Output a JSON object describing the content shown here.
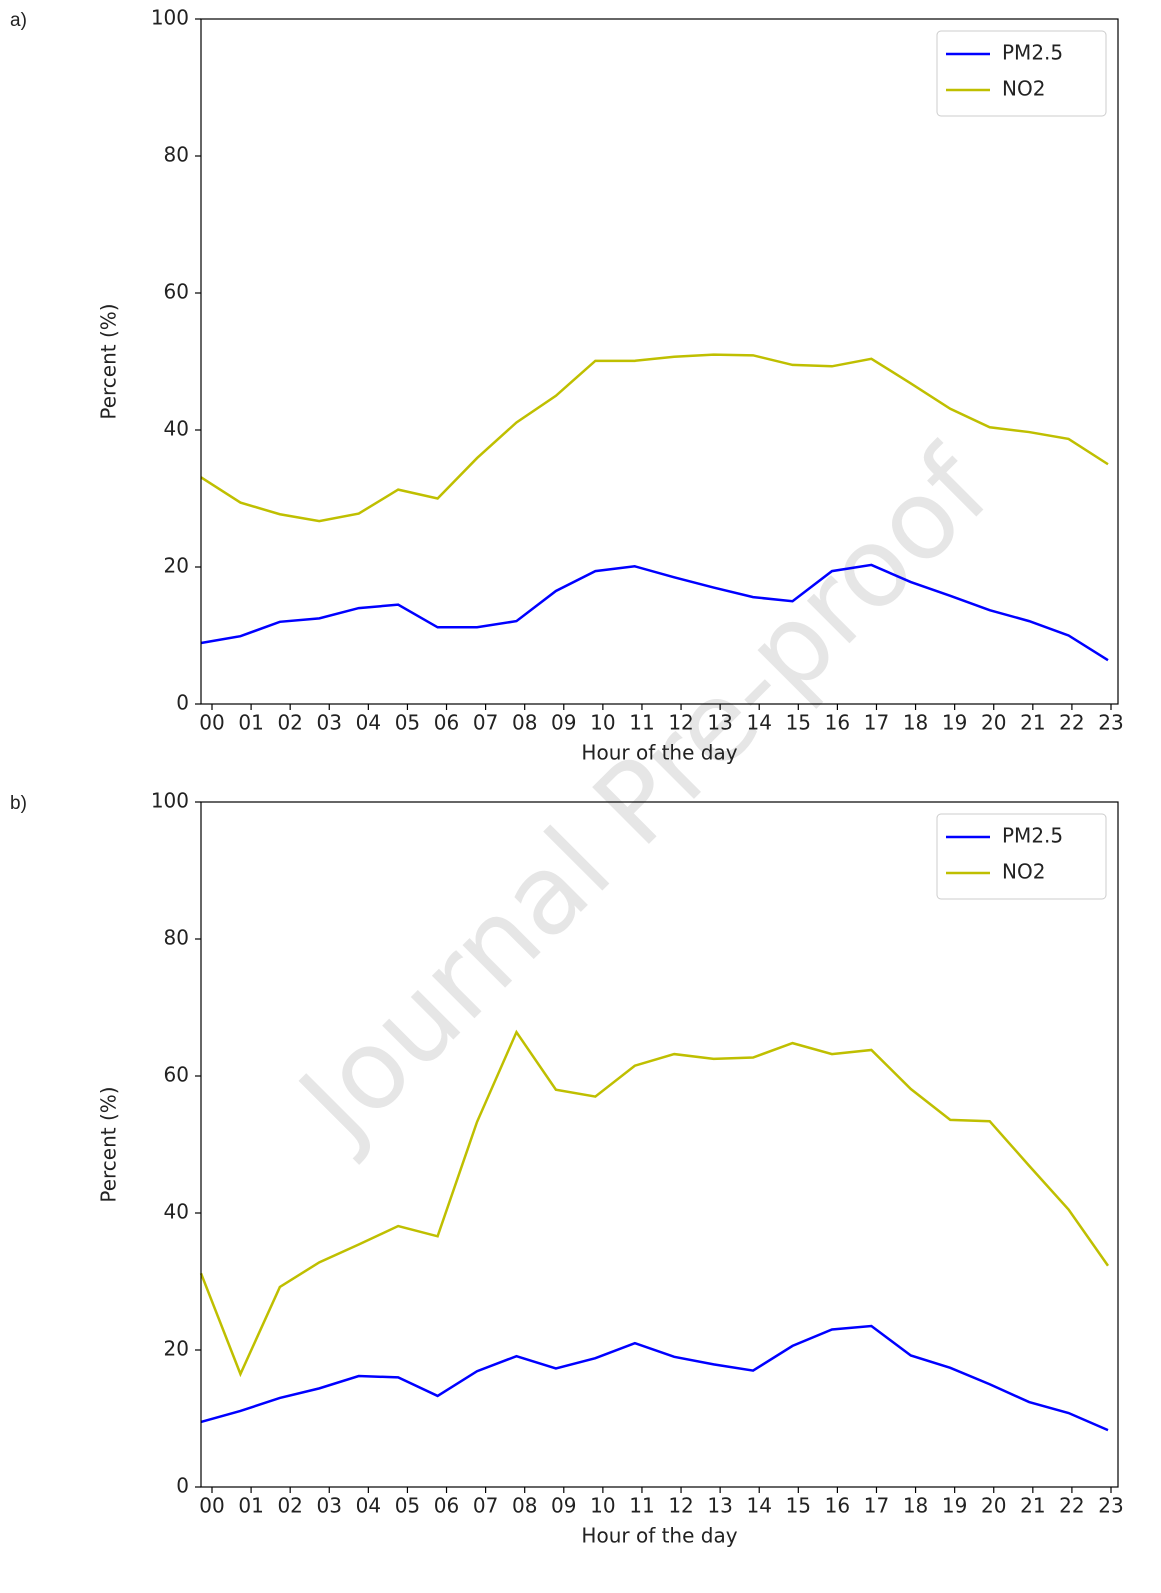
{
  "watermark": "Journal Pre-proof",
  "chart_data": [
    {
      "type": "line",
      "panel_label": "a)",
      "xlabel": "Hour of the day",
      "ylabel": "Percent (%)",
      "categories": [
        "00",
        "01",
        "02",
        "03",
        "04",
        "05",
        "06",
        "07",
        "08",
        "09",
        "10",
        "11",
        "12",
        "13",
        "14",
        "15",
        "16",
        "17",
        "18",
        "19",
        "20",
        "21",
        "22",
        "23"
      ],
      "series": [
        {
          "name": "PM2.5",
          "color": "#0000ff",
          "values": [
            8.9,
            9.9,
            12,
            12.5,
            14,
            14.5,
            11.2,
            11.2,
            12.1,
            16.5,
            19.4,
            20.1,
            18.5,
            17,
            15.6,
            15,
            19.4,
            20.3,
            17.8,
            15.8,
            13.7,
            12.1,
            10,
            6.4
          ]
        },
        {
          "name": "NO2",
          "color": "#bfbf00",
          "values": [
            33.1,
            29.4,
            27.7,
            26.7,
            27.8,
            31.3,
            30,
            35.9,
            41.1,
            45,
            50.1,
            50.1,
            50.7,
            51,
            50.9,
            49.5,
            49.3,
            50.4,
            46.8,
            43.1,
            40.4,
            39.7,
            38.7,
            35
          ]
        }
      ],
      "ylim": [
        0,
        100
      ],
      "yticks": [
        0,
        20,
        40,
        60,
        80,
        100
      ],
      "grid": false,
      "legend": "upper right"
    },
    {
      "type": "line",
      "panel_label": "b)",
      "xlabel": "Hour of the day",
      "ylabel": "Percent (%)",
      "categories": [
        "00",
        "01",
        "02",
        "03",
        "04",
        "05",
        "06",
        "07",
        "08",
        "09",
        "10",
        "11",
        "12",
        "13",
        "14",
        "15",
        "16",
        "17",
        "18",
        "19",
        "20",
        "21",
        "22",
        "23"
      ],
      "series": [
        {
          "name": "PM2.5",
          "color": "#0000ff",
          "values": [
            9.5,
            11.1,
            13,
            14.4,
            16.2,
            16,
            13.3,
            16.9,
            19.1,
            17.3,
            18.8,
            21,
            19,
            17.9,
            17,
            20.6,
            23,
            23.5,
            19.2,
            17.4,
            15,
            12.4,
            10.8,
            8.3
          ]
        },
        {
          "name": "NO2",
          "color": "#bfbf00",
          "values": [
            31.2,
            16.5,
            29.2,
            32.8,
            35.4,
            38.1,
            36.6,
            53.3,
            66.4,
            58,
            57,
            61.5,
            63.2,
            62.5,
            62.7,
            64.8,
            63.2,
            63.8,
            58.1,
            53.6,
            53.4,
            46.9,
            40.5,
            32.3
          ]
        }
      ],
      "ylim": [
        0,
        100
      ],
      "yticks": [
        0,
        20,
        40,
        60,
        80,
        100
      ],
      "grid": false,
      "legend": "upper right"
    }
  ]
}
